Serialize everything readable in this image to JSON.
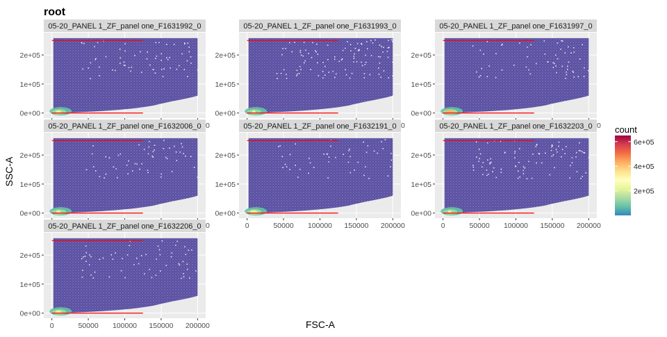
{
  "chart_data": {
    "type": "hexbin",
    "title": "root",
    "xlabel": "FSC-A",
    "ylabel": "SSC-A",
    "xlim": [
      0,
      200000
    ],
    "ylim": [
      0,
      262144
    ],
    "xticks": [
      0,
      50000,
      100000,
      150000,
      200000
    ],
    "xtick_labels": [
      "0",
      "50000",
      "100000",
      "150000",
      "200000"
    ],
    "yticks": [
      0,
      100000,
      200000
    ],
    "ytick_labels": [
      "0e+00",
      "1e+05",
      "2e+05"
    ],
    "gate_lines": [
      {
        "x": [
          0,
          125000
        ],
        "y": 250000,
        "color": "#ff0000"
      },
      {
        "x": [
          0,
          125000
        ],
        "y": 0,
        "color": "#ff0000"
      }
    ],
    "panels": [
      {
        "label": "05-20_PANEL 1_ZF_panel one_F1631992_0",
        "spread": 0.55,
        "hot": 0.35
      },
      {
        "label": "05-20_PANEL 1_ZF_panel one_F1631993_0",
        "spread": 0.9,
        "hot": 0.1
      },
      {
        "label": "05-20_PANEL 1_ZF_panel one_F1631997_0",
        "spread": 0.5,
        "hot": 0.85
      },
      {
        "label": "05-20_PANEL 1_ZF_panel one_F1632006_0",
        "spread": 0.45,
        "hot": 0.25
      },
      {
        "label": "05-20_PANEL 1_ZF_panel one_F1632191_0",
        "spread": 0.4,
        "hot": 0.55
      },
      {
        "label": "05-20_PANEL 1_ZF_panel one_F1632203_0",
        "spread": 0.75,
        "hot": 0.15
      },
      {
        "label": "05-20_PANEL 1_ZF_panel one_F1632206_0",
        "spread": 0.5,
        "hot": 0.4
      }
    ],
    "legend": {
      "title": "count",
      "range": [
        0,
        650000
      ],
      "ticks": [
        200000,
        400000,
        600000
      ],
      "tick_labels": [
        "2e+05",
        "4e+05",
        "6e+05"
      ],
      "colors": [
        "#3288bd",
        "#66c2a5",
        "#abdda4",
        "#e6f598",
        "#ffffbf",
        "#fee08b",
        "#fdae61",
        "#f46d43",
        "#d53e4f",
        "#9e0142"
      ]
    }
  }
}
